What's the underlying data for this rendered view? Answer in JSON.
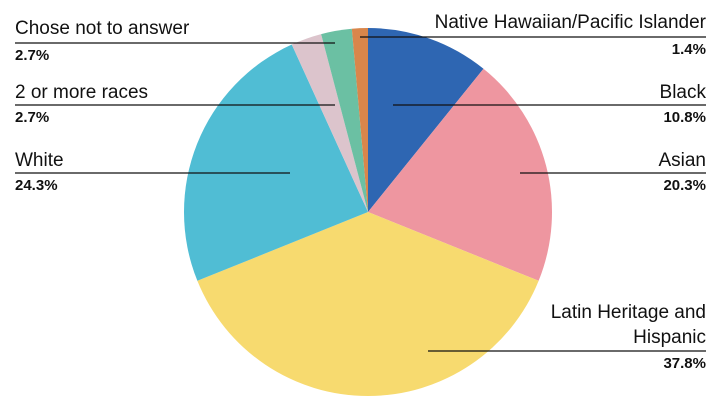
{
  "chart_data": {
    "type": "pie",
    "categories": [
      "Black",
      "Asian",
      "Latin Heritage and Hispanic",
      "White",
      "2 or more races",
      "Chose not to answer",
      "Native Hawaiian/Pacific Islander"
    ],
    "values": [
      10.8,
      20.3,
      37.8,
      24.3,
      2.7,
      2.7,
      1.4
    ],
    "value_labels": [
      "10.8%",
      "20.3%",
      "37.8%",
      "24.3%",
      "2.7%",
      "2.7%",
      "1.4%"
    ],
    "colors": [
      "#2e66b2",
      "#ee96a0",
      "#f7da6f",
      "#50bdd4",
      "#dcc4cc",
      "#6bc0a3",
      "#d9864b"
    ]
  }
}
